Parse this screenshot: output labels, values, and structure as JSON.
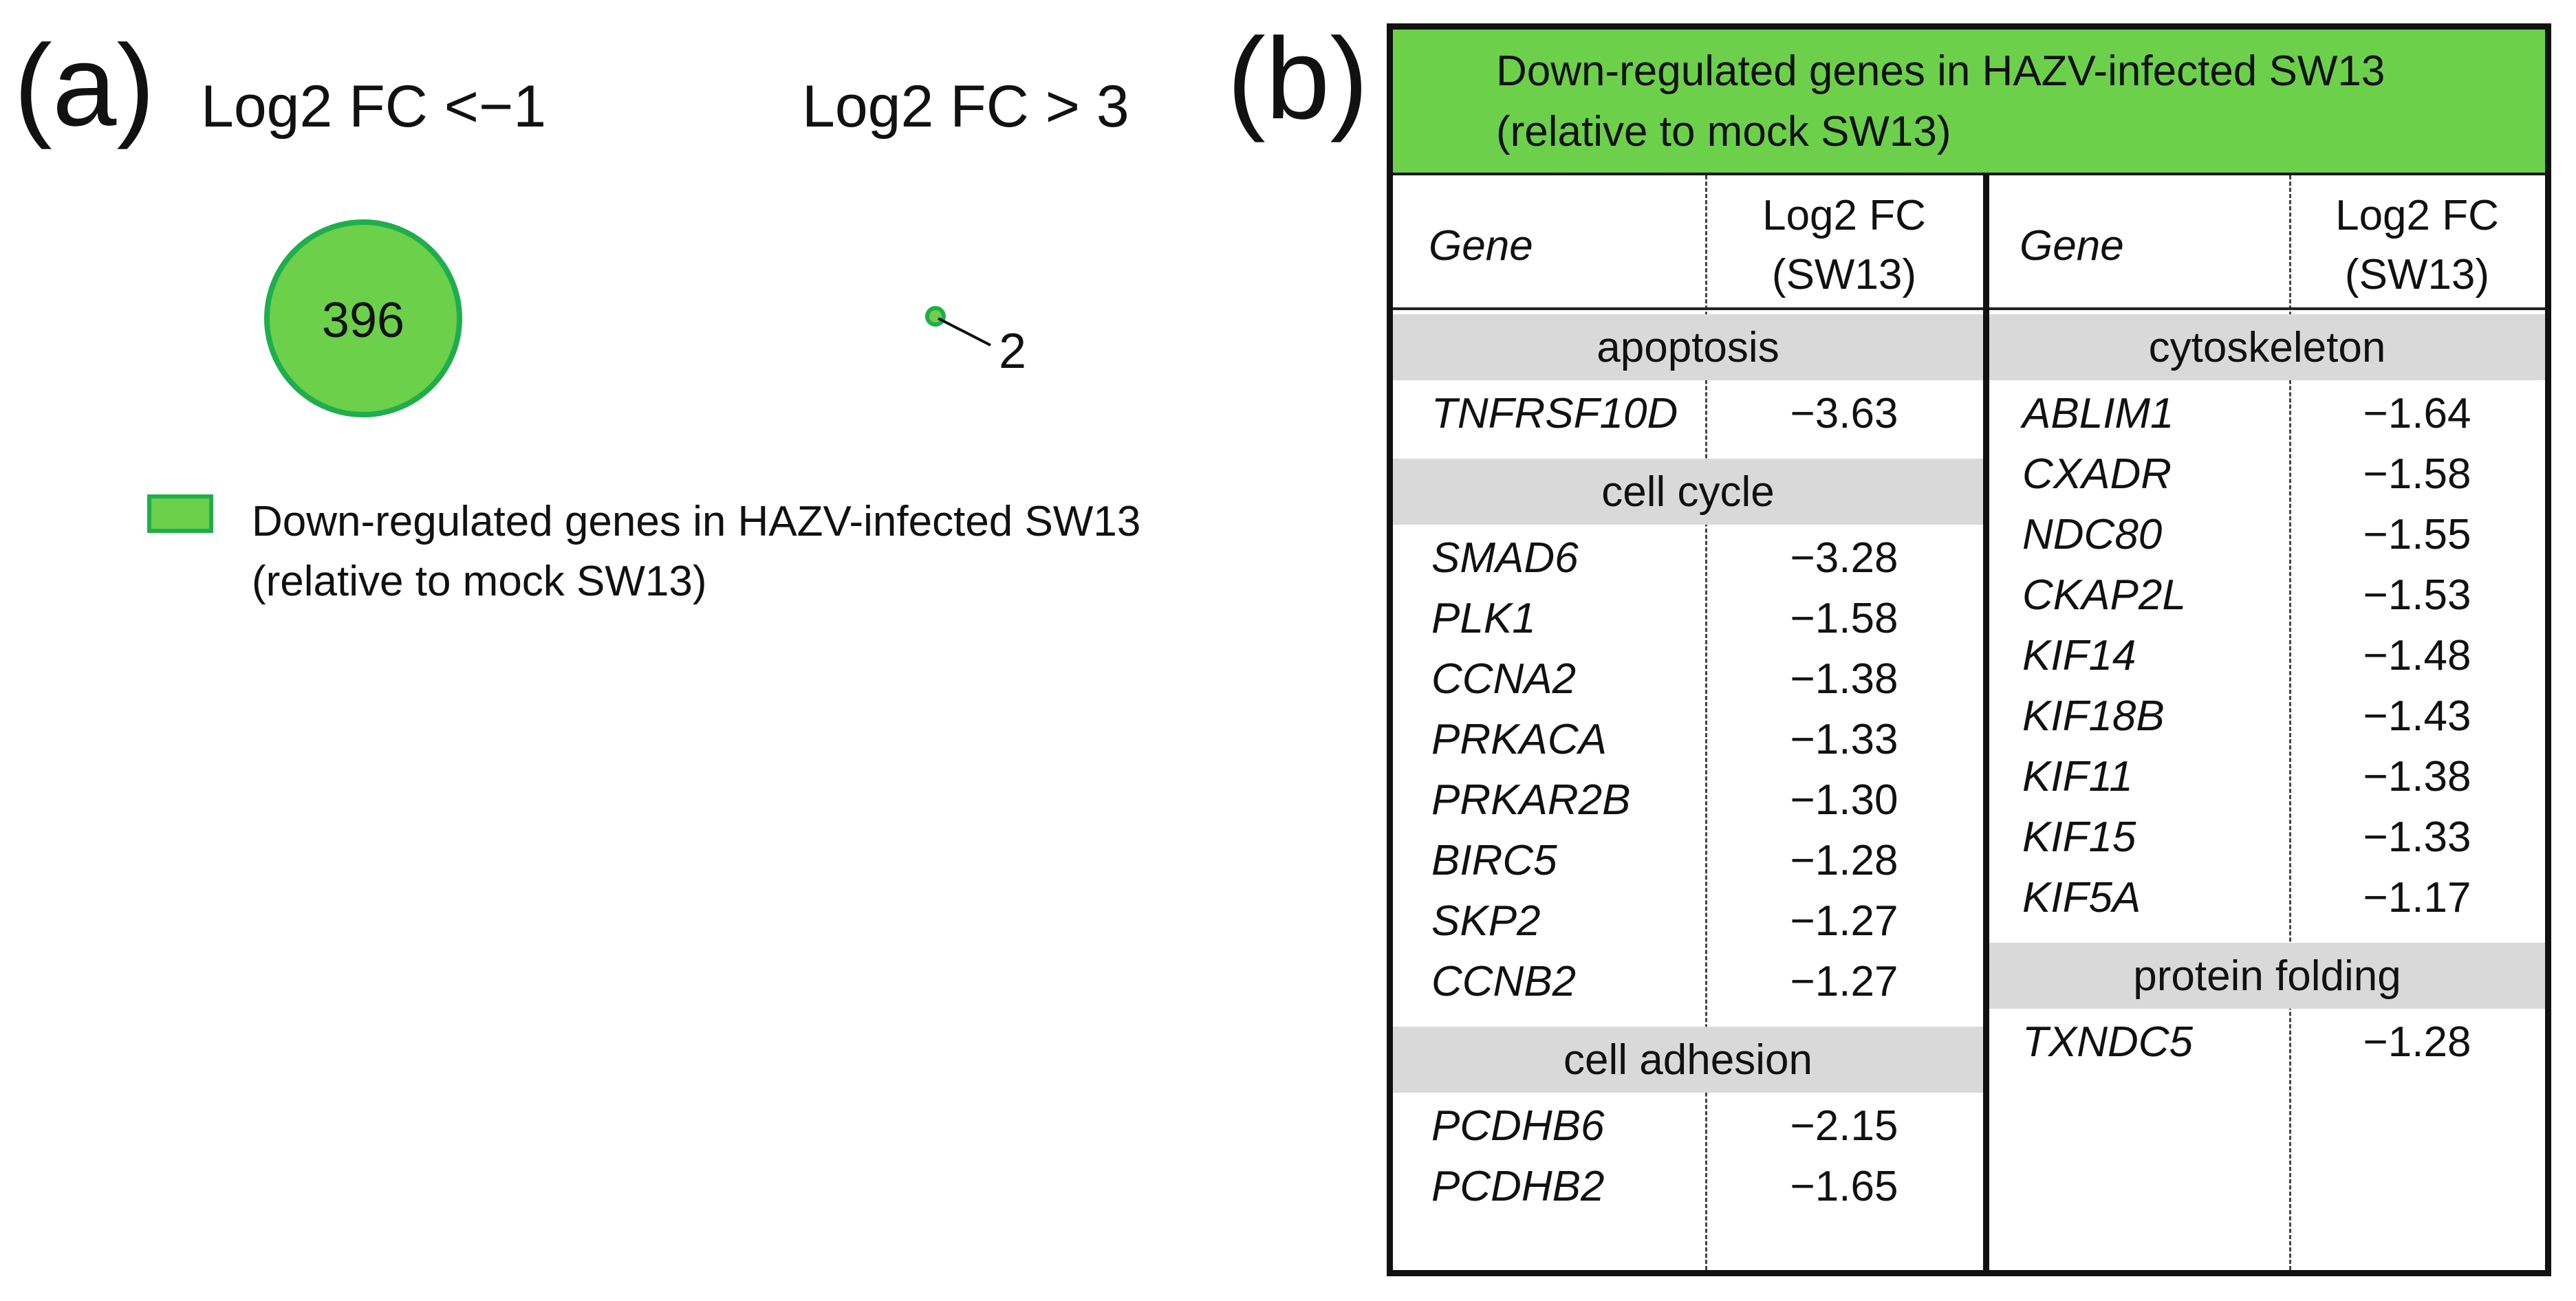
{
  "panel_a": {
    "letter": "(a)",
    "titles": [
      "Log2 FC <−1",
      "Log2 FC > 3"
    ],
    "left_count": "396",
    "right_count": "2",
    "legend": {
      "color": "#6cd04b",
      "border_color": "#1fae4c",
      "line1": "Down-regulated genes in HAZV-infected SW13",
      "line2": "(relative to mock SW13)"
    }
  },
  "panel_b": {
    "letter": "(b)",
    "header_line1": "Down-regulated genes in HAZV-infected SW13",
    "header_line2": "(relative to mock SW13)",
    "header_color": "#6cd04b",
    "col_gene": "Gene",
    "col_value_line1": "Log2 FC",
    "col_value_line2": "(SW13)",
    "left": [
      {
        "category": "apoptosis",
        "rows": [
          [
            "TNFRSF10D",
            "−3.63"
          ]
        ]
      },
      {
        "category": "cell cycle",
        "rows": [
          [
            "SMAD6",
            "−3.28"
          ],
          [
            "PLK1",
            "−1.58"
          ],
          [
            "CCNA2",
            "−1.38"
          ],
          [
            "PRKACA",
            "−1.33"
          ],
          [
            "PRKAR2B",
            "−1.30"
          ],
          [
            "BIRC5",
            "−1.28"
          ],
          [
            "SKP2",
            "−1.27"
          ],
          [
            "CCNB2",
            "−1.27"
          ]
        ]
      },
      {
        "category": "cell adhesion",
        "rows": [
          [
            "PCDHB6",
            "−2.15"
          ],
          [
            "PCDHB2",
            "−1.65"
          ]
        ]
      }
    ],
    "right": [
      {
        "category": "cytoskeleton",
        "rows": [
          [
            "ABLIM1",
            "−1.64"
          ],
          [
            "CXADR",
            "−1.58"
          ],
          [
            "NDC80",
            "−1.55"
          ],
          [
            "CKAP2L",
            "−1.53"
          ],
          [
            "KIF14",
            "−1.48"
          ],
          [
            "KIF18B",
            "−1.43"
          ],
          [
            "KIF11",
            "−1.38"
          ],
          [
            "KIF15",
            "−1.33"
          ],
          [
            "KIF5A",
            "−1.17"
          ]
        ]
      },
      {
        "category": "protein folding",
        "rows": [
          [
            "TXNDC5",
            "−1.28"
          ]
        ]
      }
    ]
  }
}
